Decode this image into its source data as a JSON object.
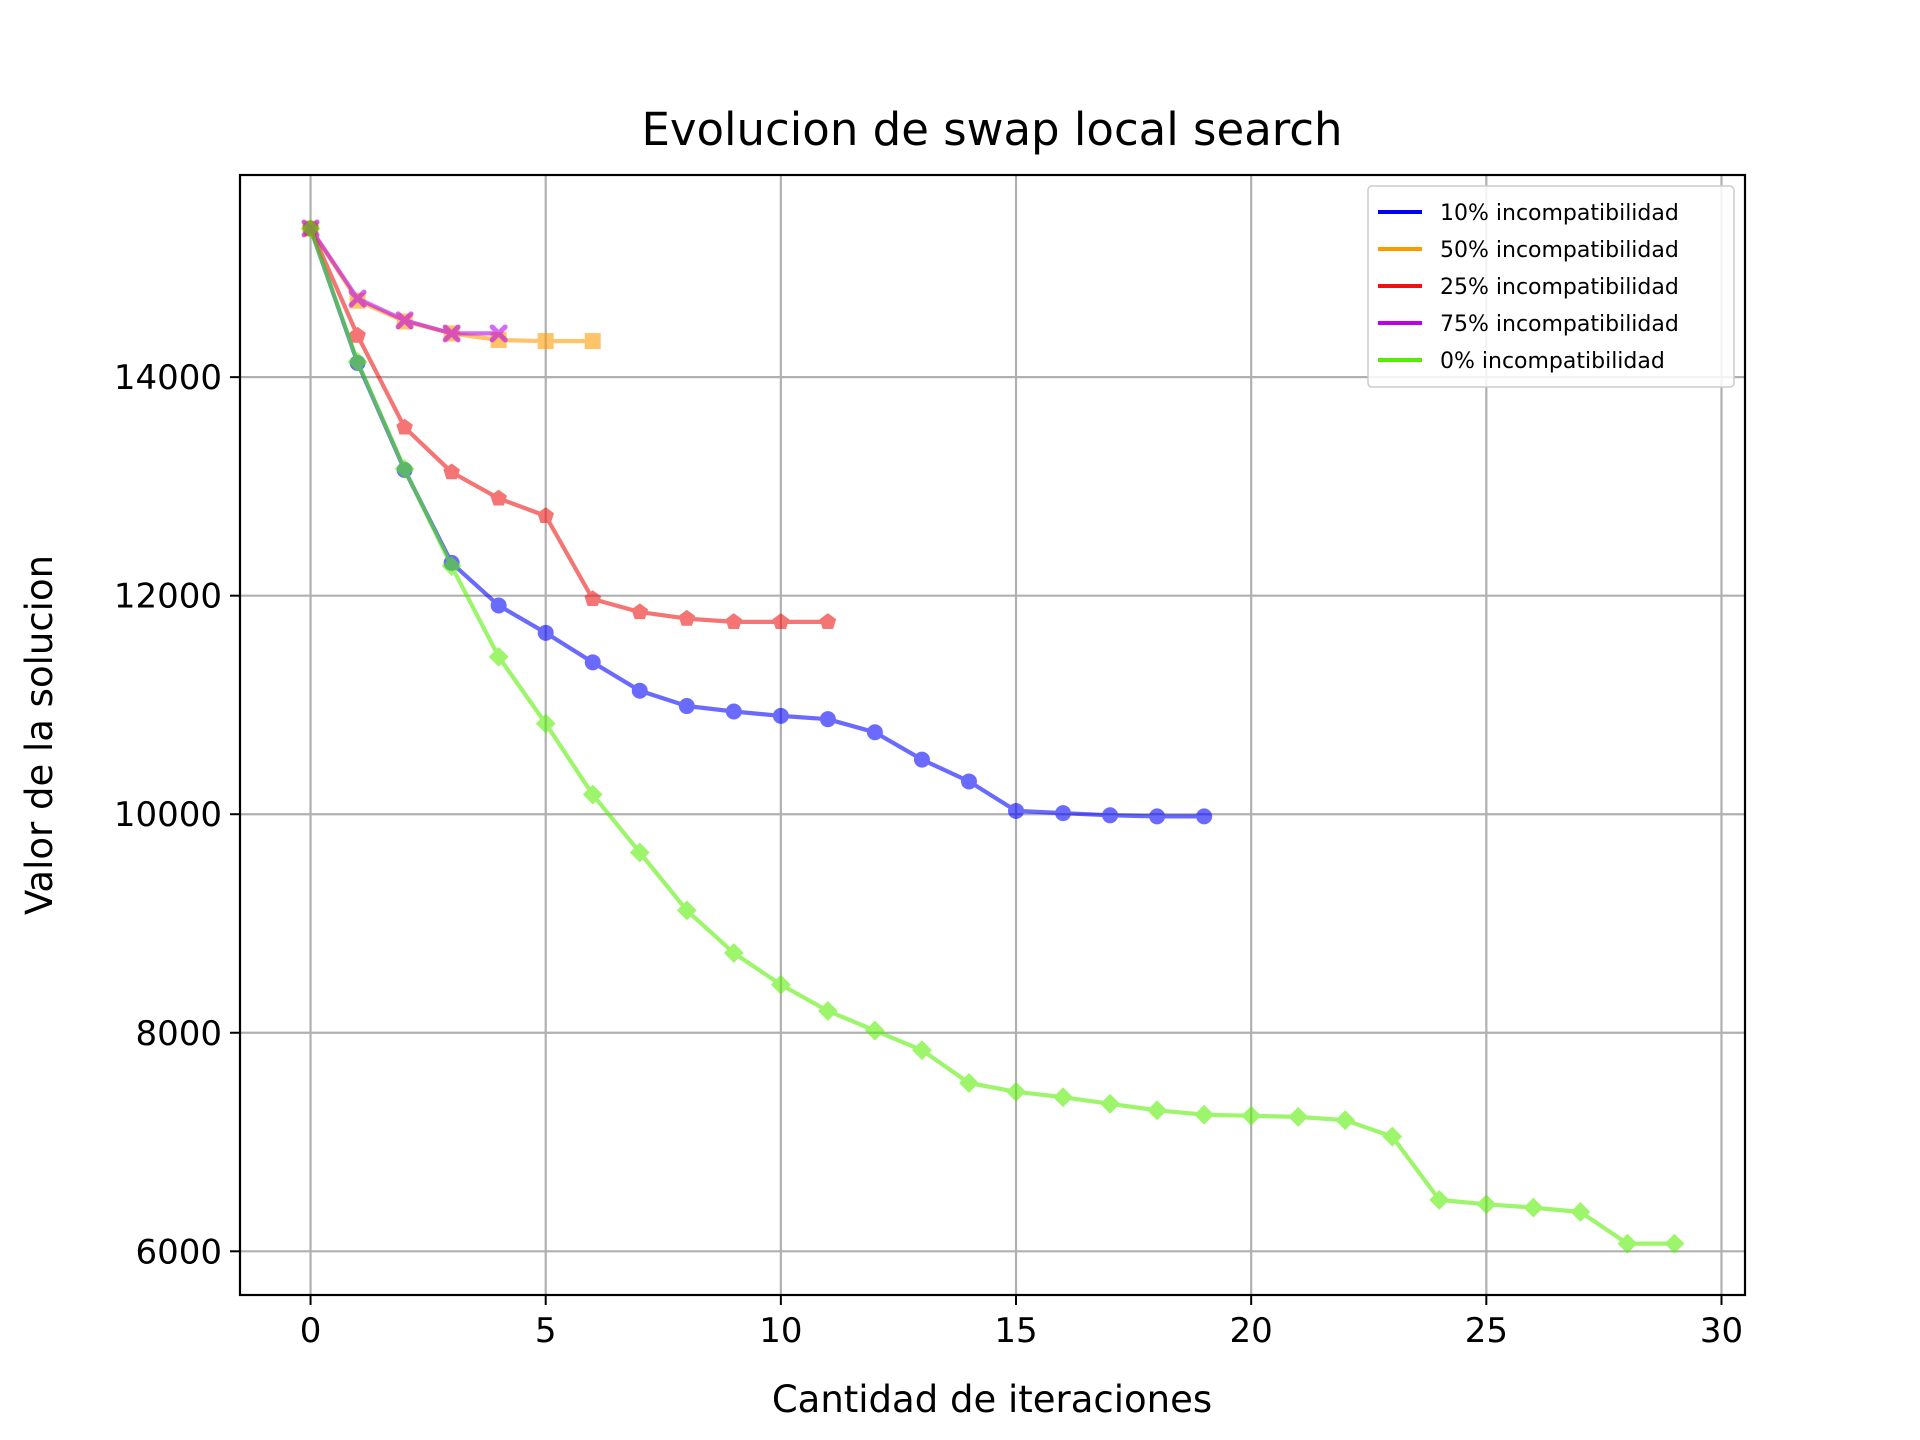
{
  "chart_data": {
    "type": "line",
    "title": "Evolucion de swap local search",
    "xlabel": "Cantidad de iteraciones",
    "ylabel": "Valor de la solucion",
    "xlim": [
      -1.5,
      30.5
    ],
    "ylim": [
      5600,
      15850
    ],
    "xticks": [
      0,
      5,
      10,
      15,
      20,
      25,
      30
    ],
    "yticks": [
      6000,
      8000,
      10000,
      12000,
      14000
    ],
    "grid": true,
    "legend_position": "top-right",
    "series": [
      {
        "name": "10% incompatibilidad",
        "color": "#0000ff",
        "marker": "circle",
        "x": [
          0,
          1,
          2,
          3,
          4,
          5,
          6,
          7,
          8,
          9,
          10,
          11,
          12,
          13,
          14,
          15,
          16,
          17,
          18,
          19
        ],
        "values": [
          15360,
          14130,
          13150,
          12300,
          11910,
          11660,
          11390,
          11130,
          10990,
          10940,
          10900,
          10870,
          10750,
          10500,
          10300,
          10030,
          10010,
          9990,
          9980,
          9980
        ]
      },
      {
        "name": "50% incompatibilidad",
        "color": "#ff9900",
        "marker": "square",
        "x": [
          0,
          1,
          2,
          3,
          4,
          5,
          6
        ],
        "values": [
          15360,
          14700,
          14510,
          14400,
          14340,
          14330,
          14330
        ]
      },
      {
        "name": "25% incompatibilidad",
        "color": "#ee1111",
        "marker": "pentagon",
        "x": [
          0,
          1,
          2,
          3,
          4,
          5,
          6,
          7,
          8,
          9,
          10,
          11
        ],
        "values": [
          15360,
          14380,
          13540,
          13130,
          12890,
          12730,
          11970,
          11850,
          11790,
          11760,
          11760,
          11760
        ]
      },
      {
        "name": "75% incompatibilidad",
        "color": "#bb00ee",
        "marker": "x",
        "x": [
          0,
          1,
          2,
          3,
          4
        ],
        "values": [
          15360,
          14720,
          14520,
          14400,
          14400
        ]
      },
      {
        "name": "0% incompatibilidad",
        "color": "#55ee00",
        "marker": "diamond",
        "x": [
          0,
          1,
          2,
          3,
          4,
          5,
          6,
          7,
          8,
          9,
          10,
          11,
          12,
          13,
          14,
          15,
          16,
          17,
          18,
          19,
          20,
          21,
          22,
          23,
          24,
          25,
          26,
          27,
          28,
          29
        ],
        "values": [
          15360,
          14140,
          13160,
          12270,
          11440,
          10830,
          10180,
          9650,
          9120,
          8730,
          8440,
          8200,
          8020,
          7840,
          7540,
          7460,
          7410,
          7350,
          7290,
          7250,
          7240,
          7230,
          7200,
          7050,
          6470,
          6430,
          6400,
          6360,
          6070,
          6070
        ]
      }
    ]
  }
}
